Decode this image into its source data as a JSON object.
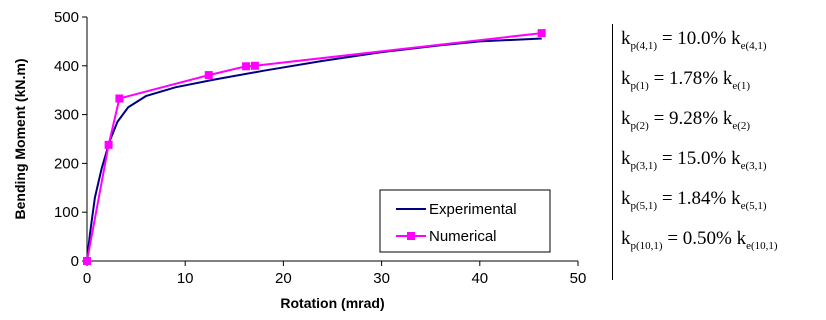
{
  "chart_data": {
    "type": "line",
    "xlabel": "Rotation (mrad)",
    "ylabel": "Bending Moment (kN.m)",
    "xlim": [
      0,
      50
    ],
    "ylim": [
      0,
      500
    ],
    "xticks": [
      0,
      10,
      20,
      30,
      40,
      50
    ],
    "yticks": [
      0,
      100,
      200,
      300,
      400,
      500
    ],
    "grid": false,
    "legend_position": "bottom-right",
    "series": [
      {
        "name": "Experimental",
        "color": "#000080",
        "marker": "none",
        "x": [
          0,
          0.3,
          0.8,
          1.5,
          2.3,
          3.1,
          4.2,
          6.0,
          9.0,
          13.0,
          18.0,
          24.0,
          30.0,
          36.0,
          40.0,
          46.3
        ],
        "y": [
          0,
          55,
          130,
          190,
          245,
          285,
          315,
          338,
          356,
          372,
          390,
          410,
          428,
          442,
          450,
          456
        ]
      },
      {
        "name": "Numerical",
        "color": "#FF00FF",
        "marker": "square",
        "x": [
          0,
          2.2,
          3.3,
          12.4,
          16.2,
          17.1,
          46.3
        ],
        "y": [
          0,
          238,
          333,
          381,
          399,
          400,
          467
        ]
      }
    ]
  },
  "equations": [
    {
      "lhs": "k",
      "lhs_sub": "p(4,1)",
      "value": "10.0%",
      "rhs": "k",
      "rhs_sub": "e(4,1)"
    },
    {
      "lhs": "k",
      "lhs_sub": "p(1)",
      "value": "1.78%",
      "rhs": "k",
      "rhs_sub": "e(1)"
    },
    {
      "lhs": "k",
      "lhs_sub": "p(2)",
      "value": "9.28%",
      "rhs": "k",
      "rhs_sub": "e(2)"
    },
    {
      "lhs": "k",
      "lhs_sub": "p(3,1)",
      "value": "15.0%",
      "rhs": "k",
      "rhs_sub": "e(3,1)"
    },
    {
      "lhs": "k",
      "lhs_sub": "p(5,1)",
      "value": "1.84%",
      "rhs": "k",
      "rhs_sub": "e(5,1)"
    },
    {
      "lhs": "k",
      "lhs_sub": "p(10,1)",
      "value": "0.50%",
      "rhs": "k",
      "rhs_sub": "e(10,1)"
    }
  ]
}
